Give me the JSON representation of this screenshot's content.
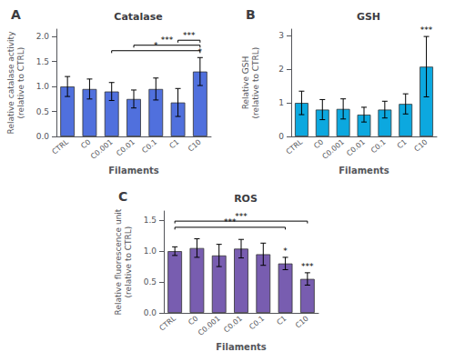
{
  "chart_data": [
    {
      "type": "bar",
      "title": "Catalase",
      "panel_label": "A",
      "categories": [
        "CTRL",
        "C0",
        "C0.001",
        "C0.01",
        "C0.1",
        "C1",
        "C10"
      ],
      "values": [
        1.0,
        0.95,
        0.9,
        0.75,
        0.95,
        0.68,
        1.3
      ],
      "errors": [
        0.2,
        0.2,
        0.18,
        0.18,
        0.22,
        0.28,
        0.28
      ],
      "xlabel": "Filaments",
      "ylabel": "Relative catalase activity\n(relative to CTRL)",
      "ylim": [
        0,
        2.15
      ],
      "yticks": [
        {
          "value": 0.0,
          "label": "0.0"
        },
        {
          "value": 0.5,
          "label": "0.5"
        },
        {
          "value": 1.0,
          "label": "1.0"
        },
        {
          "value": 1.5,
          "label": "1.5"
        },
        {
          "value": 2.0,
          "label": "2.0"
        }
      ],
      "grid": false,
      "brackets": [
        {
          "from": "C0.001",
          "to": "C10",
          "y": 1.67,
          "text": "*"
        },
        {
          "from": "C0.01",
          "to": "C10",
          "y": 1.78,
          "text": "***"
        },
        {
          "from": "C1",
          "to": "C10",
          "y": 1.88,
          "text": "***"
        }
      ],
      "annotations": [
        {
          "x": "C10",
          "y": 1.62,
          "text": "*"
        }
      ]
    },
    {
      "type": "bar",
      "title": "GSH",
      "panel_label": "B",
      "categories": [
        "CTRL",
        "C0",
        "C0.001",
        "C0.01",
        "C0.1",
        "C1",
        "C10"
      ],
      "values": [
        1.0,
        0.8,
        0.82,
        0.65,
        0.8,
        0.97,
        2.08
      ],
      "errors": [
        0.35,
        0.3,
        0.3,
        0.22,
        0.25,
        0.3,
        0.9
      ],
      "xlabel": "Filaments",
      "ylabel": "Relative GSH\n(relative to CTRL)",
      "ylim": [
        0,
        3.2
      ],
      "yticks": [
        0,
        1,
        2,
        3
      ],
      "grid": false,
      "brackets": [],
      "annotations": [
        {
          "x": "C10",
          "y": 3.05,
          "text": "***"
        }
      ]
    },
    {
      "type": "bar",
      "title": "ROS",
      "panel_label": "C",
      "categories": [
        "CTRL",
        "C0",
        "C0.001",
        "C0.01",
        "C0.1",
        "C1",
        "C10"
      ],
      "values": [
        1.0,
        1.05,
        0.93,
        1.04,
        0.95,
        0.8,
        0.55
      ],
      "errors": [
        0.07,
        0.15,
        0.18,
        0.15,
        0.18,
        0.1,
        0.1
      ],
      "xlabel": "Filaments",
      "ylabel": "Relative fluorescence unit\n(relative to CTRL)",
      "ylim": [
        0,
        1.65
      ],
      "yticks": [
        {
          "value": 0.0,
          "label": "0.0"
        },
        {
          "value": 0.5,
          "label": "0.5"
        },
        {
          "value": 1.0,
          "label": "1.0"
        },
        {
          "value": 1.5,
          "label": "1.5"
        }
      ],
      "grid": false,
      "brackets": [
        {
          "from": "CTRL",
          "to": "C10",
          "y": 1.45,
          "text": "***"
        },
        {
          "from": "CTRL",
          "to": "C1",
          "y": 1.35,
          "text": "***"
        }
      ],
      "annotations": [
        {
          "x": "C1",
          "y": 0.94,
          "text": "*"
        },
        {
          "x": "C10",
          "y": 0.69,
          "text": "***"
        }
      ]
    }
  ]
}
